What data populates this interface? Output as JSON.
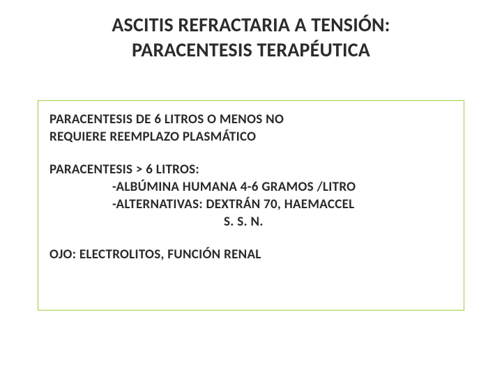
{
  "title": {
    "line1": "ASCITIS REFRACTARIA A TENSIÓN:",
    "line2": "PARACENTESIS TERAPÉUTICA"
  },
  "box": {
    "border_color": "#9ccd3c",
    "p1_l1": "PARACENTESIS  DE  6  LITROS  O  MENOS  NO",
    "p1_l2": "REQUIERE  REEMPLAZO  PLASMÁTICO",
    "p2_head": "PARACENTESIS  >  6  LITROS:",
    "p2_b1": "-ALBÚMINA HUMANA 4-6 GRAMOS /LITRO",
    "p2_b2": "-ALTERNATIVAS: DEXTRÁN 70, HAEMACCEL",
    "p2_b3": "S. S. N.",
    "p3": "OJO: ELECTROLITOS, FUNCIÓN RENAL"
  },
  "style": {
    "title_fontsize": 28,
    "body_fontsize": 19,
    "body_weight": 700,
    "title_color": "#2b2b2b",
    "body_color": "#2a2a2a",
    "background": "#ffffff",
    "slide_width": 720,
    "slide_height": 540
  }
}
